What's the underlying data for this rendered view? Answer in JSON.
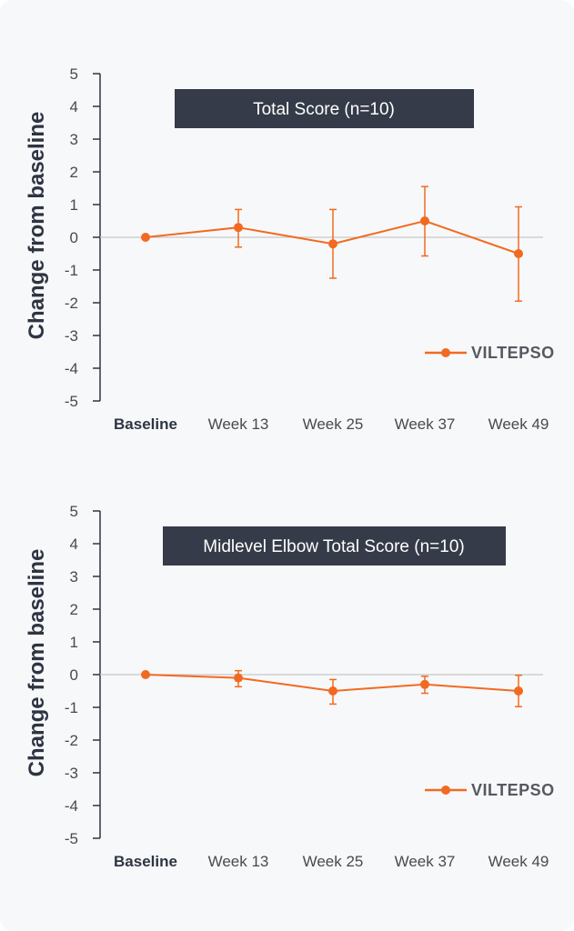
{
  "colors": {
    "series": "#f26a21",
    "title_bg": "#353b48",
    "axis": "#2e3442",
    "zero_line": "#c8c8c8",
    "background": "#f7f8fa"
  },
  "chart_data": [
    {
      "type": "line",
      "title": "Total Score (n=10)",
      "ylabel": "Change from baseline",
      "xlabel": "",
      "ylim": [
        -5,
        5
      ],
      "yticks": [
        "5",
        "4",
        "3",
        "2",
        "1",
        "0",
        "-1",
        "-2",
        "-3",
        "-4",
        "-5"
      ],
      "categories": [
        "Baseline",
        "Week 13",
        "Week 25",
        "Week 37",
        "Week 49"
      ],
      "legend_position": "bottom-right",
      "grid": false,
      "series": [
        {
          "name": "VILTEPSO",
          "values": [
            0,
            0.3,
            -0.2,
            0.5,
            -0.5
          ],
          "error_low": [
            0,
            -0.3,
            -1.25,
            -0.57,
            -1.95
          ],
          "error_high": [
            0,
            0.85,
            0.85,
            1.55,
            0.93
          ]
        }
      ]
    },
    {
      "type": "line",
      "title": "Midlevel Elbow Total Score (n=10)",
      "ylabel": "Change from baseline",
      "xlabel": "",
      "ylim": [
        -5,
        5
      ],
      "yticks": [
        "5",
        "4",
        "3",
        "2",
        "1",
        "0",
        "-1",
        "-2",
        "-3",
        "-4",
        "-5"
      ],
      "categories": [
        "Baseline",
        "Week 13",
        "Week 25",
        "Week 37",
        "Week 49"
      ],
      "legend_position": "bottom-right",
      "grid": false,
      "series": [
        {
          "name": "VILTEPSO",
          "values": [
            0,
            -0.1,
            -0.5,
            -0.3,
            -0.5
          ],
          "error_low": [
            0,
            -0.37,
            -0.9,
            -0.57,
            -0.98
          ],
          "error_high": [
            0,
            0.12,
            -0.15,
            -0.05,
            -0.02
          ]
        }
      ]
    }
  ]
}
